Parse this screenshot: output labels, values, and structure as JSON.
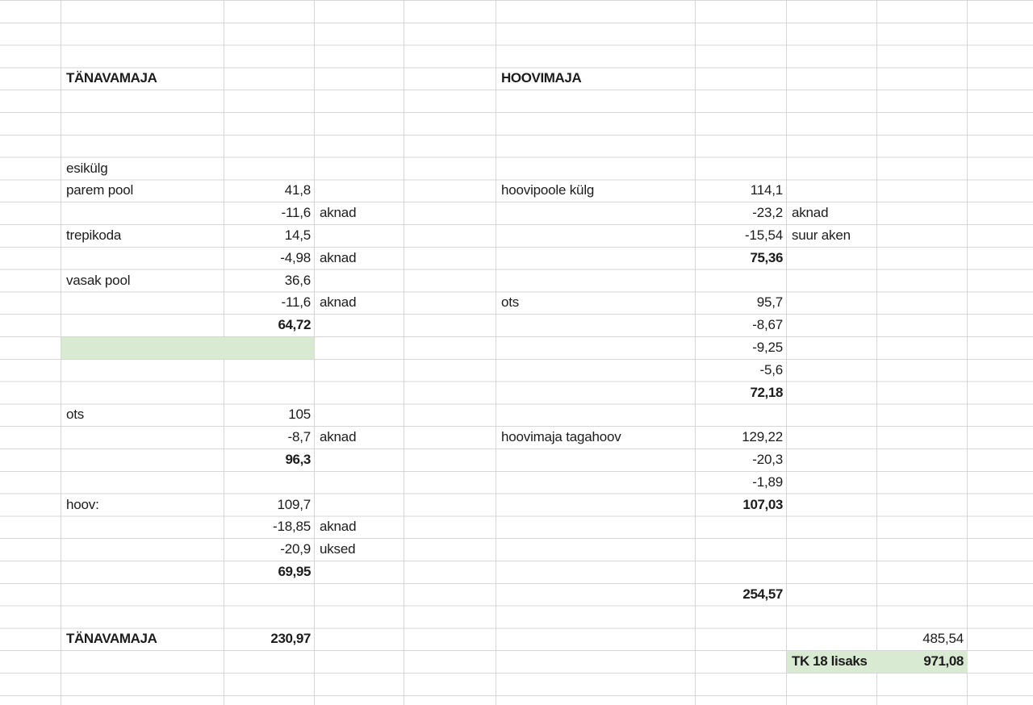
{
  "colors": {
    "highlight_green": "#d9ead3",
    "gridline": "#d6d6d6",
    "text": "#1c1c1c"
  },
  "cells": {
    "b4": "TÄNAVAMAJA",
    "f4": "HOOVIMAJA",
    "b8": "esikülg",
    "b9": "parem pool",
    "c9": "41,8",
    "f9": "hoovipoole külg",
    "g9": "114,1",
    "c10": "-11,6",
    "d10": "aknad",
    "g10": "-23,2",
    "h10": "aknad",
    "b11": "trepikoda",
    "c11": "14,5",
    "g11": "-15,54",
    "h11": "suur aken",
    "c12": "-4,98",
    "d12": "aknad",
    "g12": "75,36",
    "b13": "vasak pool",
    "c13": "36,6",
    "c14": "-11,6",
    "d14": "aknad",
    "f14": "ots",
    "g14": "95,7",
    "c15": "64,72",
    "g15": "-8,67",
    "g16": "-9,25",
    "g17": "-5,6",
    "g18": "72,18",
    "b19": "ots",
    "c19": "105",
    "c20": "-8,7",
    "d20": "aknad",
    "f20": "hoovimaja tagahoov",
    "g20": "129,22",
    "c21": "96,3",
    "g21": "-20,3",
    "g22": "-1,89",
    "b23": "hoov:",
    "c23": "109,7",
    "g23": "107,03",
    "c24": "-18,85",
    "d24": "aknad",
    "c25": "-20,9",
    "d25": "uksed",
    "c26": "69,95",
    "g27": "254,57",
    "b29": "TÄNAVAMAJA",
    "c29": "230,97",
    "i29": "485,54",
    "h30": "TK 18 lisaks",
    "i30": "971,08"
  }
}
